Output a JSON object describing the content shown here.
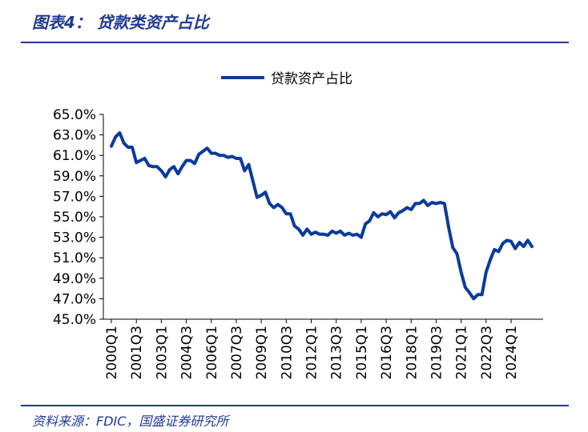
{
  "header": {
    "title": "图表4：  贷款类资产占比"
  },
  "footer": {
    "source": "资料来源：FDIC，国盛证券研究所"
  },
  "colors": {
    "accent": "#1f3a93",
    "line": "#0a3b9c",
    "axis": "#000000"
  },
  "chart_data": {
    "type": "line",
    "title": "",
    "xlabel": "",
    "ylabel": "",
    "ylim": [
      45.0,
      65.0
    ],
    "y_ticks": [
      "45.0%",
      "47.0%",
      "49.0%",
      "51.0%",
      "53.0%",
      "55.0%",
      "57.0%",
      "59.0%",
      "61.0%",
      "63.0%",
      "65.0%"
    ],
    "x_tick_labels": [
      "2000Q1",
      "2001Q3",
      "2003Q1",
      "2004Q3",
      "2006Q1",
      "2007Q3",
      "2009Q1",
      "2010Q3",
      "2012Q1",
      "2013Q3",
      "2015Q1",
      "2016Q3",
      "2018Q1",
      "2019Q3",
      "2021Q1",
      "2022Q3",
      "2024Q1"
    ],
    "legend": [
      "贷款资产占比"
    ],
    "series": [
      {
        "name": "贷款资产占比",
        "values": [
          61.9,
          62.8,
          63.2,
          62.2,
          61.8,
          61.8,
          60.3,
          60.5,
          60.7,
          60.0,
          59.9,
          59.9,
          59.5,
          58.9,
          59.6,
          59.9,
          59.2,
          59.9,
          60.5,
          60.5,
          60.2,
          61.1,
          61.4,
          61.7,
          61.2,
          61.2,
          61.0,
          61.0,
          60.8,
          60.9,
          60.7,
          60.7,
          59.5,
          60.1,
          58.5,
          56.9,
          57.1,
          57.4,
          56.3,
          55.9,
          56.2,
          55.9,
          55.3,
          55.3,
          54.1,
          53.8,
          53.2,
          53.8,
          53.3,
          53.5,
          53.3,
          53.3,
          53.2,
          53.6,
          53.4,
          53.6,
          53.2,
          53.4,
          53.2,
          53.3,
          53.0,
          54.3,
          54.6,
          55.4,
          55.0,
          55.3,
          55.2,
          55.5,
          54.9,
          55.4,
          55.6,
          55.9,
          55.7,
          56.3,
          56.3,
          56.6,
          56.1,
          56.4,
          56.3,
          56.4,
          56.3,
          54.0,
          52.0,
          51.4,
          49.6,
          48.1,
          47.6,
          47.0,
          47.4,
          47.4,
          49.6,
          50.8,
          51.8,
          51.6,
          52.4,
          52.7,
          52.6,
          51.9,
          52.5,
          52.1,
          52.7,
          52.1
        ]
      }
    ]
  }
}
